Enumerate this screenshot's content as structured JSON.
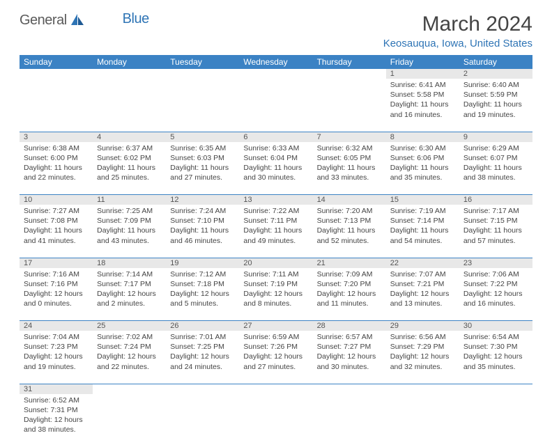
{
  "colors": {
    "header_bg": "#3b82c4",
    "header_text": "#ffffff",
    "daynum_bg": "#e8e8e8",
    "border": "#3b82c4",
    "logo_gray": "#5a5a5a",
    "logo_blue": "#2e74b5",
    "body_text": "#444444"
  },
  "logo": {
    "text1": "General",
    "text2": "Blue"
  },
  "title": "March 2024",
  "location": "Keosauqua, Iowa, United States",
  "day_headers": [
    "Sunday",
    "Monday",
    "Tuesday",
    "Wednesday",
    "Thursday",
    "Friday",
    "Saturday"
  ],
  "weeks": [
    [
      null,
      null,
      null,
      null,
      null,
      {
        "n": "1",
        "sr": "6:41 AM",
        "ss": "5:58 PM",
        "dl": "11 hours and 16 minutes."
      },
      {
        "n": "2",
        "sr": "6:40 AM",
        "ss": "5:59 PM",
        "dl": "11 hours and 19 minutes."
      }
    ],
    [
      {
        "n": "3",
        "sr": "6:38 AM",
        "ss": "6:00 PM",
        "dl": "11 hours and 22 minutes."
      },
      {
        "n": "4",
        "sr": "6:37 AM",
        "ss": "6:02 PM",
        "dl": "11 hours and 25 minutes."
      },
      {
        "n": "5",
        "sr": "6:35 AM",
        "ss": "6:03 PM",
        "dl": "11 hours and 27 minutes."
      },
      {
        "n": "6",
        "sr": "6:33 AM",
        "ss": "6:04 PM",
        "dl": "11 hours and 30 minutes."
      },
      {
        "n": "7",
        "sr": "6:32 AM",
        "ss": "6:05 PM",
        "dl": "11 hours and 33 minutes."
      },
      {
        "n": "8",
        "sr": "6:30 AM",
        "ss": "6:06 PM",
        "dl": "11 hours and 35 minutes."
      },
      {
        "n": "9",
        "sr": "6:29 AM",
        "ss": "6:07 PM",
        "dl": "11 hours and 38 minutes."
      }
    ],
    [
      {
        "n": "10",
        "sr": "7:27 AM",
        "ss": "7:08 PM",
        "dl": "11 hours and 41 minutes."
      },
      {
        "n": "11",
        "sr": "7:25 AM",
        "ss": "7:09 PM",
        "dl": "11 hours and 43 minutes."
      },
      {
        "n": "12",
        "sr": "7:24 AM",
        "ss": "7:10 PM",
        "dl": "11 hours and 46 minutes."
      },
      {
        "n": "13",
        "sr": "7:22 AM",
        "ss": "7:11 PM",
        "dl": "11 hours and 49 minutes."
      },
      {
        "n": "14",
        "sr": "7:20 AM",
        "ss": "7:13 PM",
        "dl": "11 hours and 52 minutes."
      },
      {
        "n": "15",
        "sr": "7:19 AM",
        "ss": "7:14 PM",
        "dl": "11 hours and 54 minutes."
      },
      {
        "n": "16",
        "sr": "7:17 AM",
        "ss": "7:15 PM",
        "dl": "11 hours and 57 minutes."
      }
    ],
    [
      {
        "n": "17",
        "sr": "7:16 AM",
        "ss": "7:16 PM",
        "dl": "12 hours and 0 minutes."
      },
      {
        "n": "18",
        "sr": "7:14 AM",
        "ss": "7:17 PM",
        "dl": "12 hours and 2 minutes."
      },
      {
        "n": "19",
        "sr": "7:12 AM",
        "ss": "7:18 PM",
        "dl": "12 hours and 5 minutes."
      },
      {
        "n": "20",
        "sr": "7:11 AM",
        "ss": "7:19 PM",
        "dl": "12 hours and 8 minutes."
      },
      {
        "n": "21",
        "sr": "7:09 AM",
        "ss": "7:20 PM",
        "dl": "12 hours and 11 minutes."
      },
      {
        "n": "22",
        "sr": "7:07 AM",
        "ss": "7:21 PM",
        "dl": "12 hours and 13 minutes."
      },
      {
        "n": "23",
        "sr": "7:06 AM",
        "ss": "7:22 PM",
        "dl": "12 hours and 16 minutes."
      }
    ],
    [
      {
        "n": "24",
        "sr": "7:04 AM",
        "ss": "7:23 PM",
        "dl": "12 hours and 19 minutes."
      },
      {
        "n": "25",
        "sr": "7:02 AM",
        "ss": "7:24 PM",
        "dl": "12 hours and 22 minutes."
      },
      {
        "n": "26",
        "sr": "7:01 AM",
        "ss": "7:25 PM",
        "dl": "12 hours and 24 minutes."
      },
      {
        "n": "27",
        "sr": "6:59 AM",
        "ss": "7:26 PM",
        "dl": "12 hours and 27 minutes."
      },
      {
        "n": "28",
        "sr": "6:57 AM",
        "ss": "7:27 PM",
        "dl": "12 hours and 30 minutes."
      },
      {
        "n": "29",
        "sr": "6:56 AM",
        "ss": "7:29 PM",
        "dl": "12 hours and 32 minutes."
      },
      {
        "n": "30",
        "sr": "6:54 AM",
        "ss": "7:30 PM",
        "dl": "12 hours and 35 minutes."
      }
    ],
    [
      {
        "n": "31",
        "sr": "6:52 AM",
        "ss": "7:31 PM",
        "dl": "12 hours and 38 minutes."
      },
      null,
      null,
      null,
      null,
      null,
      null
    ]
  ],
  "labels": {
    "sunrise": "Sunrise:",
    "sunset": "Sunset:",
    "daylight": "Daylight:"
  }
}
